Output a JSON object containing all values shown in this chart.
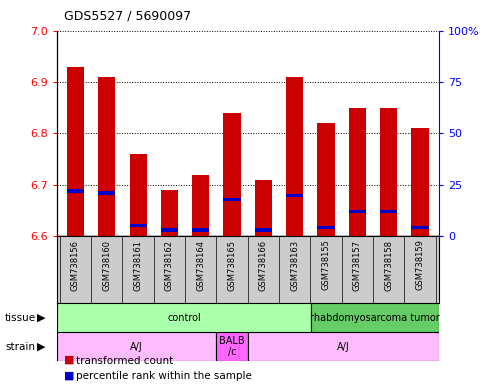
{
  "title": "GDS5527 / 5690097",
  "samples": [
    "GSM738156",
    "GSM738160",
    "GSM738161",
    "GSM738162",
    "GSM738164",
    "GSM738165",
    "GSM738166",
    "GSM738163",
    "GSM738155",
    "GSM738157",
    "GSM738158",
    "GSM738159"
  ],
  "transformed_counts": [
    6.93,
    6.91,
    6.76,
    6.69,
    6.72,
    6.84,
    6.71,
    6.91,
    6.82,
    6.85,
    6.85,
    6.81
  ],
  "percentile_ranks": [
    22,
    21,
    5,
    3,
    3,
    18,
    3,
    20,
    4,
    12,
    12,
    4
  ],
  "ymin": 6.6,
  "ymax": 7.0,
  "yticks": [
    6.6,
    6.7,
    6.8,
    6.9,
    7.0
  ],
  "right_yticks": [
    0,
    25,
    50,
    75,
    100
  ],
  "bar_color": "#cc0000",
  "percentile_color": "#0000cc",
  "bar_width": 0.55,
  "tissue_groups": [
    {
      "label": "control",
      "start": 0,
      "end": 8,
      "color": "#aaffaa"
    },
    {
      "label": "rhabdomyosarcoma tumor",
      "start": 8,
      "end": 12,
      "color": "#66cc66"
    }
  ],
  "strain_groups": [
    {
      "label": "A/J",
      "start": 0,
      "end": 5,
      "color": "#ffbbff"
    },
    {
      "label": "BALB\n/c",
      "start": 5,
      "end": 6,
      "color": "#ff66ff"
    },
    {
      "label": "A/J",
      "start": 6,
      "end": 12,
      "color": "#ffbbff"
    }
  ],
  "legend_red": "transformed count",
  "legend_blue": "percentile rank within the sample",
  "background_color": "#ffffff",
  "tick_area_color": "#cccccc"
}
